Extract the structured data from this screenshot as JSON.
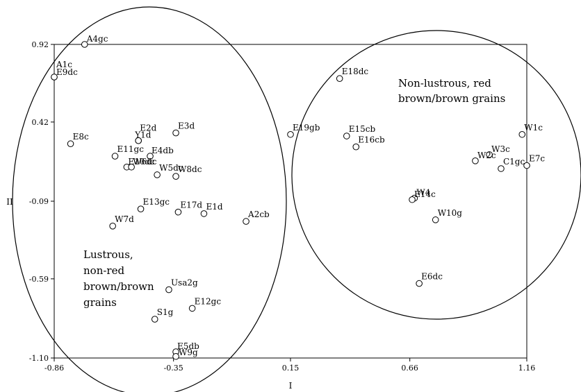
{
  "chart_data": {
    "type": "scatter",
    "title": "",
    "xlabel": "I",
    "ylabel": "II",
    "xlim": [
      -0.86,
      1.16
    ],
    "ylim": [
      -1.1,
      0.92
    ],
    "xticks": [
      "-0.86",
      "-0.35",
      "0.15",
      "0.66",
      "1.16"
    ],
    "yticks": [
      "0.92",
      "0.42",
      "-0.09",
      "-0.59",
      "-1.10"
    ],
    "grid": false,
    "points": [
      {
        "label": "A4gc",
        "x": -0.73,
        "y": 0.92
      },
      {
        "label": "A1c",
        "x": -0.86,
        "y": 0.71
      },
      {
        "label": "E9dc",
        "x": -0.86,
        "y": 0.71
      },
      {
        "label": "E8c",
        "x": -0.79,
        "y": 0.28
      },
      {
        "label": "E11gc",
        "x": -0.6,
        "y": 0.2
      },
      {
        "label": "E2d",
        "x": -0.5,
        "y": 0.3
      },
      {
        "label": "Y1d",
        "x": -0.5,
        "y": 0.3
      },
      {
        "label": "E3d",
        "x": -0.34,
        "y": 0.35
      },
      {
        "label": "E4db",
        "x": -0.45,
        "y": 0.2
      },
      {
        "label": "E10dc",
        "x": -0.55,
        "y": 0.13
      },
      {
        "label": "W6dc",
        "x": -0.53,
        "y": 0.13
      },
      {
        "label": "W5dc",
        "x": -0.42,
        "y": 0.08
      },
      {
        "label": "W8dc",
        "x": -0.34,
        "y": 0.07
      },
      {
        "label": "E13gc",
        "x": -0.49,
        "y": -0.14
      },
      {
        "label": "E17d",
        "x": -0.33,
        "y": -0.16
      },
      {
        "label": "E1d",
        "x": -0.22,
        "y": -0.17
      },
      {
        "label": "A2cb",
        "x": -0.04,
        "y": -0.22
      },
      {
        "label": "W7d",
        "x": -0.61,
        "y": -0.25
      },
      {
        "label": "Usa2g",
        "x": -0.37,
        "y": -0.66
      },
      {
        "label": "E12gc",
        "x": -0.27,
        "y": -0.78
      },
      {
        "label": "S1g",
        "x": -0.43,
        "y": -0.85
      },
      {
        "label": "E5db",
        "x": -0.34,
        "y": -1.06
      },
      {
        "label": "W9g",
        "x": -0.34,
        "y": -1.09
      },
      {
        "label": "E18dc",
        "x": 0.36,
        "y": 0.7
      },
      {
        "label": "E19gb",
        "x": 0.15,
        "y": 0.34
      },
      {
        "label": "E15cb",
        "x": 0.39,
        "y": 0.33
      },
      {
        "label": "E16cb",
        "x": 0.43,
        "y": 0.26
      },
      {
        "label": "W1c",
        "x": 1.14,
        "y": 0.34
      },
      {
        "label": "W3c",
        "x": 1.0,
        "y": 0.21
      },
      {
        "label": "W2c",
        "x": 0.94,
        "y": 0.17
      },
      {
        "label": "C1gc",
        "x": 1.05,
        "y": 0.12
      },
      {
        "label": "E7c",
        "x": 1.16,
        "y": 0.14
      },
      {
        "label": "W4",
        "x": 0.68,
        "y": -0.07
      },
      {
        "label": "E14c",
        "x": 0.67,
        "y": -0.08
      },
      {
        "label": "W10g",
        "x": 0.77,
        "y": -0.21
      },
      {
        "label": "E6dc",
        "x": 0.7,
        "y": -0.62
      }
    ],
    "annotations": [
      {
        "lines": [
          "Non-lustrous, red",
          "brown/brown grains"
        ],
        "position": "upper-right"
      },
      {
        "lines": [
          "Lustrous,",
          "non-red",
          "brown/brown",
          "grains"
        ],
        "position": "lower-left"
      }
    ]
  }
}
